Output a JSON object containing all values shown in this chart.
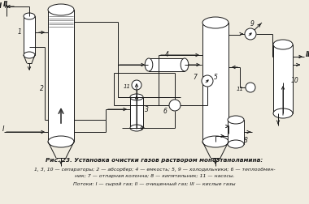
{
  "title": "Рис. 23. Установка очистки газов раствором моноэтаноламина:",
  "caption_line1": "1, 3, 10 — сепараторы; 2 — абсорбер; 4 — емкость; 5, 9 — холодильники; 6 — теплообмен-",
  "caption_line2": "ник; 7 — отпарная колонна; 8 — кипятильник; 11 — насосы.",
  "caption_line3": "Потоки: I — сырой газ; II — очищенный газ; III — кислые газы",
  "bg_color": "#f0ece0",
  "line_color": "#1a1a1a",
  "fig_width": 3.8,
  "fig_height": 2.52,
  "dpi": 100
}
